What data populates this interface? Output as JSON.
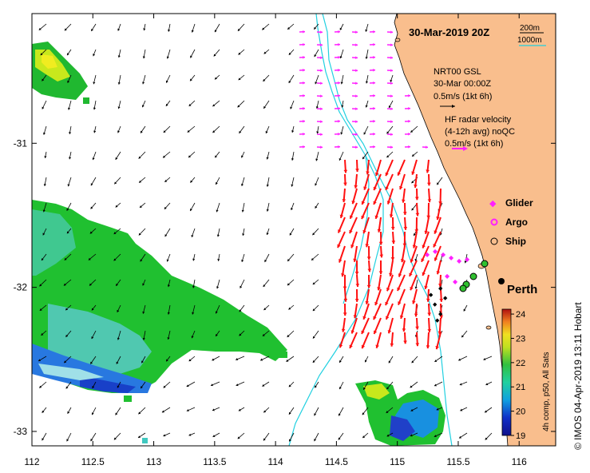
{
  "map": {
    "title": "30-Mar-2019 20Z",
    "lon_range": [
      112,
      116.3
    ],
    "lat_range": [
      -33.1,
      -30.1
    ],
    "x_ticks": [
      "112",
      "112.5",
      "113",
      "113.5",
      "114",
      "114.5",
      "115",
      "115.5",
      "116"
    ],
    "y_ticks": [
      "-31",
      "-32",
      "-33"
    ],
    "x_tick_values": [
      112,
      112.5,
      113,
      113.5,
      114,
      114.5,
      115,
      115.5,
      116
    ],
    "y_tick_values": [
      -31,
      -32,
      -33
    ],
    "copyright": "© IMOS 04-Apr-2019 13:11 Hobart",
    "city": "Perth"
  },
  "colors": {
    "land": "#f9be8d",
    "sea": "#ffffff",
    "isobath": "#20d0e0",
    "radar_a": "#ff20ff",
    "radar_b": "#ff1010",
    "model_arrow": "#000000"
  },
  "legend": {
    "isobath_200": "200m",
    "isobath_1000": "1000m",
    "model_title": "NRT00 GSL",
    "model_date": "30-Mar 00:00Z",
    "model_scale": "0.5m/s (1kt 6h)",
    "radar_title": "HF radar velocity",
    "radar_sub": "(4-12h avg) noQC",
    "radar_scale": "0.5m/s (1kt 6h)",
    "glider": "Glider",
    "argo": "Argo",
    "ship": "Ship"
  },
  "colorbar": {
    "label": "4h comp, p50, All Sats",
    "min": 19,
    "max": 24.2,
    "tick_labels": [
      "24",
      "23",
      "22",
      "21",
      "20",
      "19"
    ],
    "tick_values": [
      24,
      23,
      22,
      21,
      20,
      19
    ]
  }
}
